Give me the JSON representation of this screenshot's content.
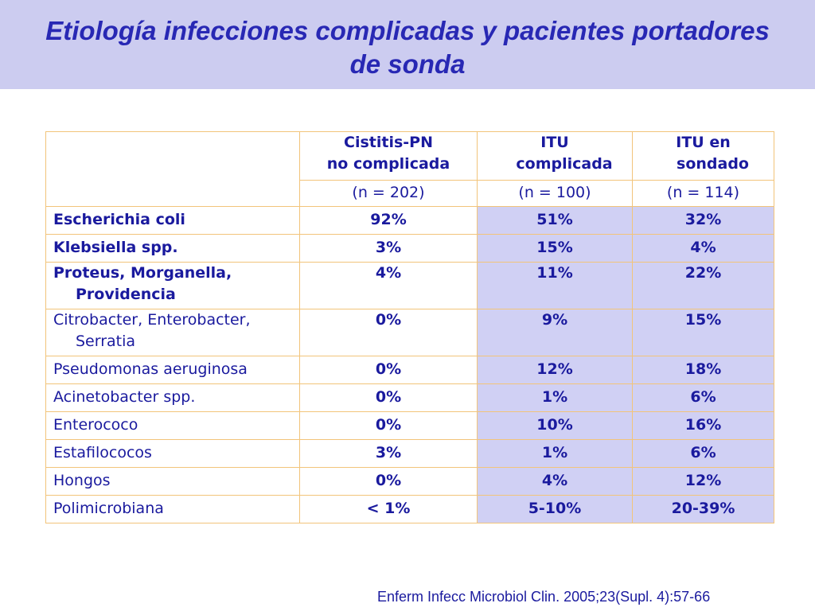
{
  "title": {
    "line1": "Etiología infecciones complicadas y pacientes portadores",
    "line2": "de sonda"
  },
  "table": {
    "columns": [
      {
        "line1": "Cistitis-PN",
        "line2": "no complicada",
        "n": "(n = 202)"
      },
      {
        "line1": "ITU",
        "line2": "complicada",
        "n": "(n = 100)"
      },
      {
        "line1": "ITU en",
        "line2": "sondado",
        "n": "(n = 114)"
      }
    ],
    "rows": [
      {
        "name": "Escherichia coli",
        "cont": "",
        "values": [
          "92%",
          "51%",
          "32%"
        ]
      },
      {
        "name": "Klebsiella spp.",
        "cont": "",
        "values": [
          "3%",
          "15%",
          "4%"
        ]
      },
      {
        "name": "Proteus, Morganella,",
        "cont": "Providencia",
        "values": [
          "4%",
          "11%",
          "22%"
        ]
      },
      {
        "name": "Citrobacter, Enterobacter,",
        "cont": "Serratia",
        "values": [
          "0%",
          "9%",
          "15%"
        ]
      },
      {
        "name": "Pseudomonas aeruginosa",
        "cont": "",
        "values": [
          "0%",
          "12%",
          "18%"
        ]
      },
      {
        "name": "Acinetobacter spp.",
        "cont": "",
        "values": [
          "0%",
          "1%",
          "6%"
        ]
      },
      {
        "name": "Enterococo",
        "cont": "",
        "values": [
          "0%",
          "10%",
          "16%"
        ]
      },
      {
        "name": "Estafilococos",
        "cont": "",
        "values": [
          "3%",
          "1%",
          "6%"
        ]
      },
      {
        "name": "Hongos",
        "cont": "",
        "values": [
          "0%",
          "4%",
          "12%"
        ]
      },
      {
        "name": "Polimicrobiana",
        "cont": "",
        "values": [
          "< 1%",
          "5-10%",
          "20-39%"
        ]
      }
    ]
  },
  "source": "Enferm Infecc Microbiol Clin. 2005;23(Supl. 4):57-66",
  "colors": {
    "title_band": "#ccccf0",
    "text": "#1a1a9e",
    "title_text": "#2828b4",
    "cell_border": "#f2c47a",
    "shaded_cell": "#d0d0f4"
  }
}
